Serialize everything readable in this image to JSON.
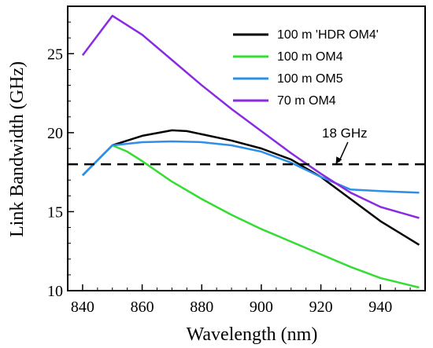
{
  "chart_data": {
    "type": "line",
    "xlabel": "Wavelength (nm)",
    "ylabel": "Link Bandwidth (GHz)",
    "xlim": [
      835,
      955
    ],
    "ylim": [
      10,
      28
    ],
    "xticks": [
      840,
      860,
      880,
      900,
      920,
      940
    ],
    "yticks": [
      10,
      15,
      20,
      25
    ],
    "grid": false,
    "legend_position": "top-right",
    "series": [
      {
        "name": "100 m 'HDR OM4'",
        "color": "#000000",
        "x": [
          840,
          850,
          860,
          870,
          875,
          880,
          890,
          900,
          910,
          920,
          930,
          940,
          953
        ],
        "y": [
          17.3,
          19.2,
          19.8,
          20.15,
          20.1,
          19.9,
          19.5,
          19.0,
          18.3,
          17.2,
          15.8,
          14.4,
          12.9
        ]
      },
      {
        "name": "100 m OM4",
        "color": "#33dd33",
        "x": [
          840,
          850,
          855,
          860,
          870,
          880,
          890,
          900,
          910,
          920,
          930,
          940,
          953
        ],
        "y": [
          17.3,
          19.2,
          18.8,
          18.2,
          16.9,
          15.8,
          14.8,
          13.9,
          13.1,
          12.3,
          11.5,
          10.8,
          10.2
        ]
      },
      {
        "name": "100 m OM5",
        "color": "#2f8fe8",
        "x": [
          840,
          850,
          860,
          870,
          880,
          890,
          900,
          910,
          920,
          930,
          940,
          953
        ],
        "y": [
          17.3,
          19.2,
          19.4,
          19.45,
          19.4,
          19.2,
          18.8,
          18.1,
          17.2,
          16.4,
          16.3,
          16.2
        ]
      },
      {
        "name": "70 m OM4",
        "color": "#8a2be2",
        "x": [
          840,
          850,
          860,
          870,
          880,
          890,
          900,
          910,
          920,
          930,
          940,
          953
        ],
        "y": [
          24.9,
          27.4,
          26.2,
          24.6,
          23.0,
          21.5,
          20.1,
          18.7,
          17.4,
          16.2,
          15.3,
          14.6
        ]
      }
    ],
    "reference_line": {
      "y": 18,
      "style": "dashed",
      "color": "#000000"
    },
    "annotations": [
      {
        "text": "18 GHz",
        "x": 928,
        "y": 19.2,
        "arrow_to": [
          925,
          18
        ]
      }
    ]
  }
}
